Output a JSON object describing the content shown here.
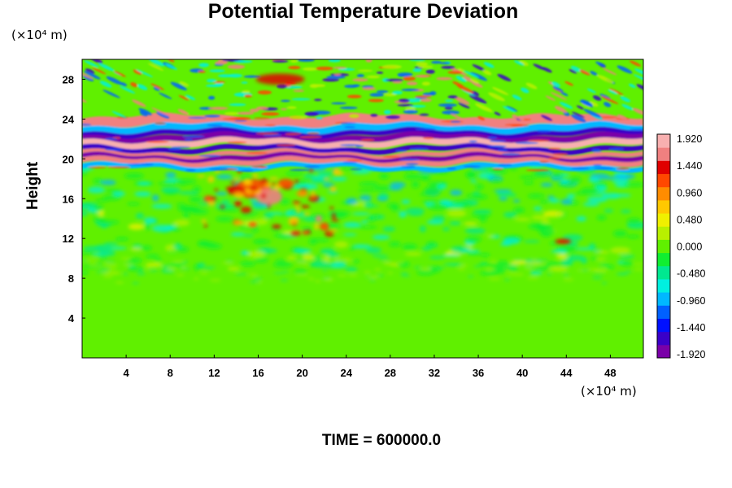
{
  "chart_data": {
    "type": "heatmap",
    "title": "Potential Temperature Deviation",
    "ylabel": "Height",
    "xlabel": "",
    "y_unit": "(×10⁴ m)",
    "x_unit": "(×10⁴ m)",
    "xlim": [
      0,
      51
    ],
    "ylim": [
      0,
      30
    ],
    "x_ticks": [
      "4",
      "8",
      "12",
      "16",
      "20",
      "24",
      "28",
      "32",
      "36",
      "40",
      "44",
      "48"
    ],
    "x_tick_values": [
      4,
      8,
      12,
      16,
      20,
      24,
      28,
      32,
      36,
      40,
      44,
      48
    ],
    "y_ticks": [
      "4",
      "8",
      "12",
      "16",
      "20",
      "24",
      "28"
    ],
    "y_tick_values": [
      4,
      8,
      12,
      16,
      20,
      24,
      28
    ],
    "colorbar": {
      "labels": [
        "1.920",
        "1.440",
        "0.960",
        "0.480",
        "0.000",
        "-0.480",
        "-0.960",
        "-1.440",
        "-1.920"
      ],
      "min": -1.92,
      "max": 1.92,
      "colors": [
        "#7a00a8",
        "#3a00c8",
        "#0010ff",
        "#0060ff",
        "#00b8ff",
        "#00f0e0",
        "#00e890",
        "#10ee30",
        "#60f000",
        "#b8f000",
        "#f0f000",
        "#ffc800",
        "#ff8c00",
        "#ff4800",
        "#e00000",
        "#f08080",
        "#f8b0b0"
      ]
    },
    "annotation": "TIME = 600000.0",
    "notes": "Field near 0 (green) below ~9; cyan/yellow speckled band 9–19 with warm anomaly near x 12–22, y 13–19; intense alternating bands (pink/purple/blue/red) at y 19–24; oscillating warm/cold pattern y 24–30."
  }
}
